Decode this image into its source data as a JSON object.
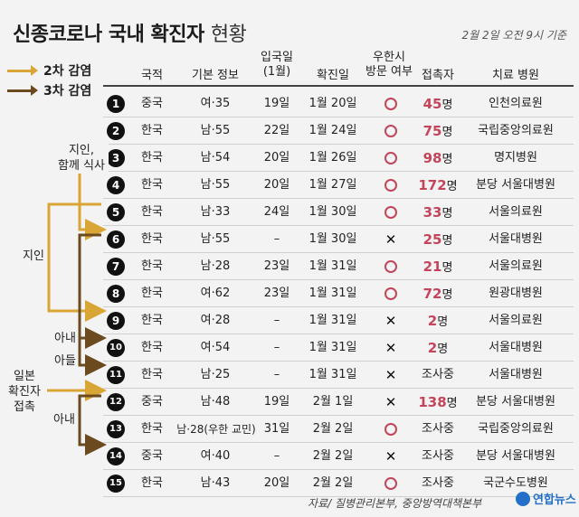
{
  "title": "신종코로나 국내 확진자",
  "title_sub": "현황",
  "as_of": "2월 2일 오전 9시 기준",
  "legend": [
    {
      "label": "2차 감염",
      "color": "#d9a535"
    },
    {
      "label": "3차 감염",
      "color": "#6b4a1f"
    }
  ],
  "headers": {
    "nationality": "국적",
    "info": "기본 정보",
    "entry_line1": "입국일",
    "entry_line2": "(1월)",
    "confirmed": "확진일",
    "wuhan_line1": "우한시",
    "wuhan_line2": "방문 여부",
    "contacts": "접촉자",
    "hospital": "치료 병원"
  },
  "rows": [
    {
      "no": "1",
      "nat": "중국",
      "info": "여·35",
      "entry": "19일",
      "conf": "1월 20일",
      "wuhan": "O",
      "cnt": "45",
      "unit": "명",
      "hosp": "인천의료원"
    },
    {
      "no": "2",
      "nat": "한국",
      "info": "남·55",
      "entry": "22일",
      "conf": "1월 24일",
      "wuhan": "O",
      "cnt": "75",
      "unit": "명",
      "hosp": "국립중앙의료원"
    },
    {
      "no": "3",
      "nat": "한국",
      "info": "남·54",
      "entry": "20일",
      "conf": "1월 26일",
      "wuhan": "O",
      "cnt": "98",
      "unit": "명",
      "hosp": "명지병원"
    },
    {
      "no": "4",
      "nat": "한국",
      "info": "남·55",
      "entry": "20일",
      "conf": "1월 27일",
      "wuhan": "O",
      "cnt": "172",
      "unit": "명",
      "hosp": "분당 서울대병원"
    },
    {
      "no": "5",
      "nat": "한국",
      "info": "남·33",
      "entry": "24일",
      "conf": "1월 30일",
      "wuhan": "O",
      "cnt": "33",
      "unit": "명",
      "hosp": "서울의료원"
    },
    {
      "no": "6",
      "nat": "한국",
      "info": "남·55",
      "entry": "–",
      "conf": "1월 30일",
      "wuhan": "X",
      "cnt": "25",
      "unit": "명",
      "hosp": "서울대병원"
    },
    {
      "no": "7",
      "nat": "한국",
      "info": "남·28",
      "entry": "23일",
      "conf": "1월 31일",
      "wuhan": "O",
      "cnt": "21",
      "unit": "명",
      "hosp": "서울의료원"
    },
    {
      "no": "8",
      "nat": "한국",
      "info": "여·62",
      "entry": "23일",
      "conf": "1월 31일",
      "wuhan": "O",
      "cnt": "72",
      "unit": "명",
      "hosp": "원광대병원"
    },
    {
      "no": "9",
      "nat": "한국",
      "info": "여·28",
      "entry": "–",
      "conf": "1월 31일",
      "wuhan": "X",
      "cnt": "2",
      "unit": "명",
      "hosp": "서울의료원"
    },
    {
      "no": "10",
      "nat": "한국",
      "info": "여·54",
      "entry": "–",
      "conf": "1월 31일",
      "wuhan": "X",
      "cnt": "2",
      "unit": "명",
      "hosp": "서울대병원"
    },
    {
      "no": "11",
      "nat": "한국",
      "info": "남·25",
      "entry": "–",
      "conf": "1월 31일",
      "wuhan": "X",
      "cnt": "",
      "unit": "조사중",
      "hosp": "서울대병원"
    },
    {
      "no": "12",
      "nat": "중국",
      "info": "남·48",
      "entry": "19일",
      "conf": "2월 1일",
      "wuhan": "X",
      "cnt": "138",
      "unit": "명",
      "hosp": "분당 서울대병원"
    },
    {
      "no": "13",
      "nat": "한국",
      "info": "남·28(우한 교민)",
      "entry": "31일",
      "conf": "2월 2일",
      "wuhan": "O",
      "cnt": "",
      "unit": "조사중",
      "hosp": "국립중앙의료원"
    },
    {
      "no": "14",
      "nat": "중국",
      "info": "여·40",
      "entry": "–",
      "conf": "2월 2일",
      "wuhan": "X",
      "cnt": "",
      "unit": "조사중",
      "hosp": "분당 서울대병원"
    },
    {
      "no": "15",
      "nat": "한국",
      "info": "남·43",
      "entry": "20일",
      "conf": "2월 2일",
      "wuhan": "O",
      "cnt": "",
      "unit": "조사중",
      "hosp": "국군수도병원"
    }
  ],
  "relations": {
    "r1_line1": "지인,",
    "r1_line2": "함께 식사",
    "r2": "지인",
    "r3": "아내",
    "r4": "아들",
    "r5_line1": "일본",
    "r5_line2": "확진자",
    "r5_line3": "접촉",
    "r6": "아내"
  },
  "source": "자료/ 질병관리본부, 중앙방역대책본부",
  "logo": "연합뉴스"
}
